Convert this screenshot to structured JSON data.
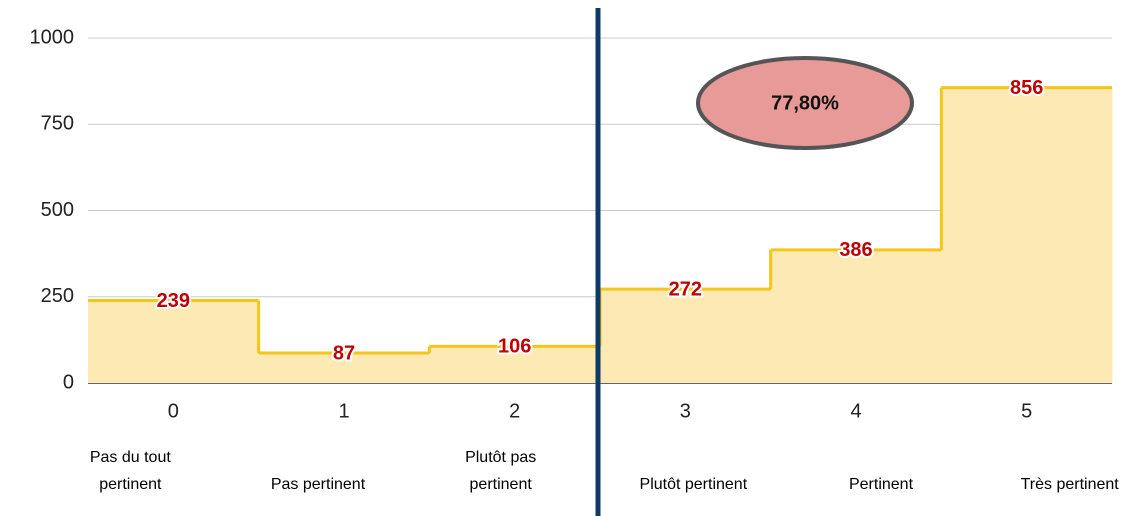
{
  "chart_data": {
    "type": "step-area",
    "categories": [
      "0",
      "1",
      "2",
      "3",
      "4",
      "5"
    ],
    "category_descriptions": [
      "Pas du tout pertinent",
      "Pas pertinent",
      "Plutôt pas pertinent",
      "Plutôt pertinent",
      "Pertinent",
      "Très pertinent"
    ],
    "values": [
      239,
      87,
      106,
      272,
      386,
      856
    ],
    "color": "#f5c518",
    "fill": "#fde9b3",
    "label_color": "#c00000",
    "ylim": [
      0,
      1000
    ],
    "yticks": [
      0,
      250,
      500,
      750,
      1000
    ],
    "grid": true,
    "annotation": "77,80%"
  }
}
